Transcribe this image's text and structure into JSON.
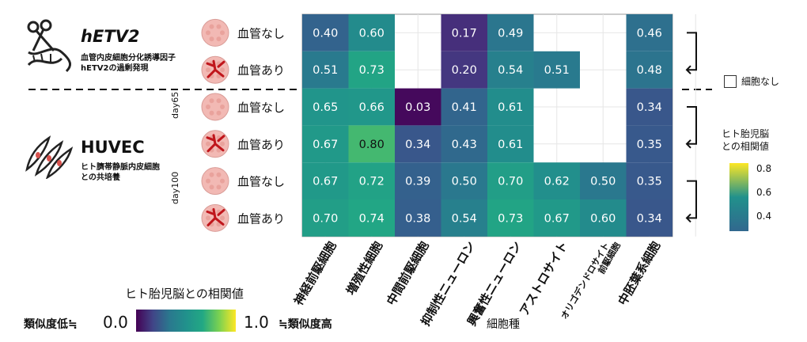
{
  "groups": [
    {
      "title": "hETV2",
      "subtitle_lines": [
        "血管内皮細胞分化誘導因子",
        "hETV2の過剰発現"
      ],
      "icon": "scissors-dna-icon"
    },
    {
      "title": "HUVEC",
      "subtitle_lines": [
        "ヒト臍帯静脈内皮細胞",
        "との共培養"
      ],
      "icon": "endothelial-cells-icon"
    }
  ],
  "day_labels": [
    "day65",
    "day100"
  ],
  "legend_empty": "細胞なし",
  "colorbar_right": {
    "title_lines": [
      "ヒト胎児脳",
      "との相関値"
    ],
    "ticks": [
      "0.8",
      "0.6",
      "0.4"
    ],
    "colors": [
      "#fde725",
      "#21918c",
      "#31688e"
    ]
  },
  "colorbar_bottom": {
    "title": "ヒト胎児脳との相関値",
    "left_label": "類似度低≒",
    "min_label": "0.0",
    "max_label": "1.0",
    "right_label": "≒類似度高"
  },
  "chart_data": {
    "type": "heatmap",
    "xlabel": "細胞種",
    "columns": [
      "神経前駆細胞",
      "増殖性細胞",
      "中間前駆細胞",
      "抑制性ニューロン",
      "興奮性ニューロン",
      "アストロサイト",
      "オリゴデンドロサイト前駆細胞",
      "中胚葉系細胞"
    ],
    "column_label_lines": [
      [
        "神経前駆細胞"
      ],
      [
        "増殖性細胞"
      ],
      [
        "中間前駆細胞"
      ],
      [
        "抑制性ニューロン"
      ],
      [
        "興奮性ニューロン"
      ],
      [
        "アストロサイト"
      ],
      [
        "オリゴデンドロサイト",
        "前駆細胞"
      ],
      [
        "中胚葉系細胞"
      ]
    ],
    "rows": [
      "血管なし",
      "血管あり",
      "血管なし",
      "血管あり",
      "血管なし",
      "血管あり"
    ],
    "values": [
      [
        0.4,
        0.6,
        null,
        0.17,
        0.49,
        null,
        null,
        0.46
      ],
      [
        0.51,
        0.73,
        null,
        0.2,
        0.54,
        0.51,
        null,
        0.48
      ],
      [
        0.65,
        0.66,
        0.03,
        0.41,
        0.61,
        null,
        null,
        0.34
      ],
      [
        0.67,
        0.8,
        0.34,
        0.43,
        0.61,
        null,
        null,
        0.35
      ],
      [
        0.67,
        0.72,
        0.39,
        0.5,
        0.7,
        0.62,
        0.5,
        0.35
      ],
      [
        0.7,
        0.74,
        0.38,
        0.54,
        0.73,
        0.67,
        0.6,
        0.34
      ]
    ],
    "value_labels": [
      [
        "0.40",
        "0.60",
        "",
        "0.17",
        "0.49",
        "",
        "",
        "0.46"
      ],
      [
        "0.51",
        "0.73",
        "",
        "0.20",
        "0.54",
        "0.51",
        "",
        "0.48"
      ],
      [
        "0.65",
        "0.66",
        "0.03",
        "0.41",
        "0.61",
        "",
        "",
        "0.34"
      ],
      [
        "0.67",
        "0.80",
        "0.34",
        "0.43",
        "0.61",
        "",
        "",
        "0.35"
      ],
      [
        "0.67",
        "0.72",
        "0.39",
        "0.50",
        "0.70",
        "0.62",
        "0.50",
        "0.35"
      ],
      [
        "0.70",
        "0.74",
        "0.38",
        "0.54",
        "0.73",
        "0.67",
        "0.60",
        "0.34"
      ]
    ],
    "colormap": "viridis",
    "vrange": [
      0.0,
      1.0
    ],
    "empty_color": "#ffffff"
  }
}
